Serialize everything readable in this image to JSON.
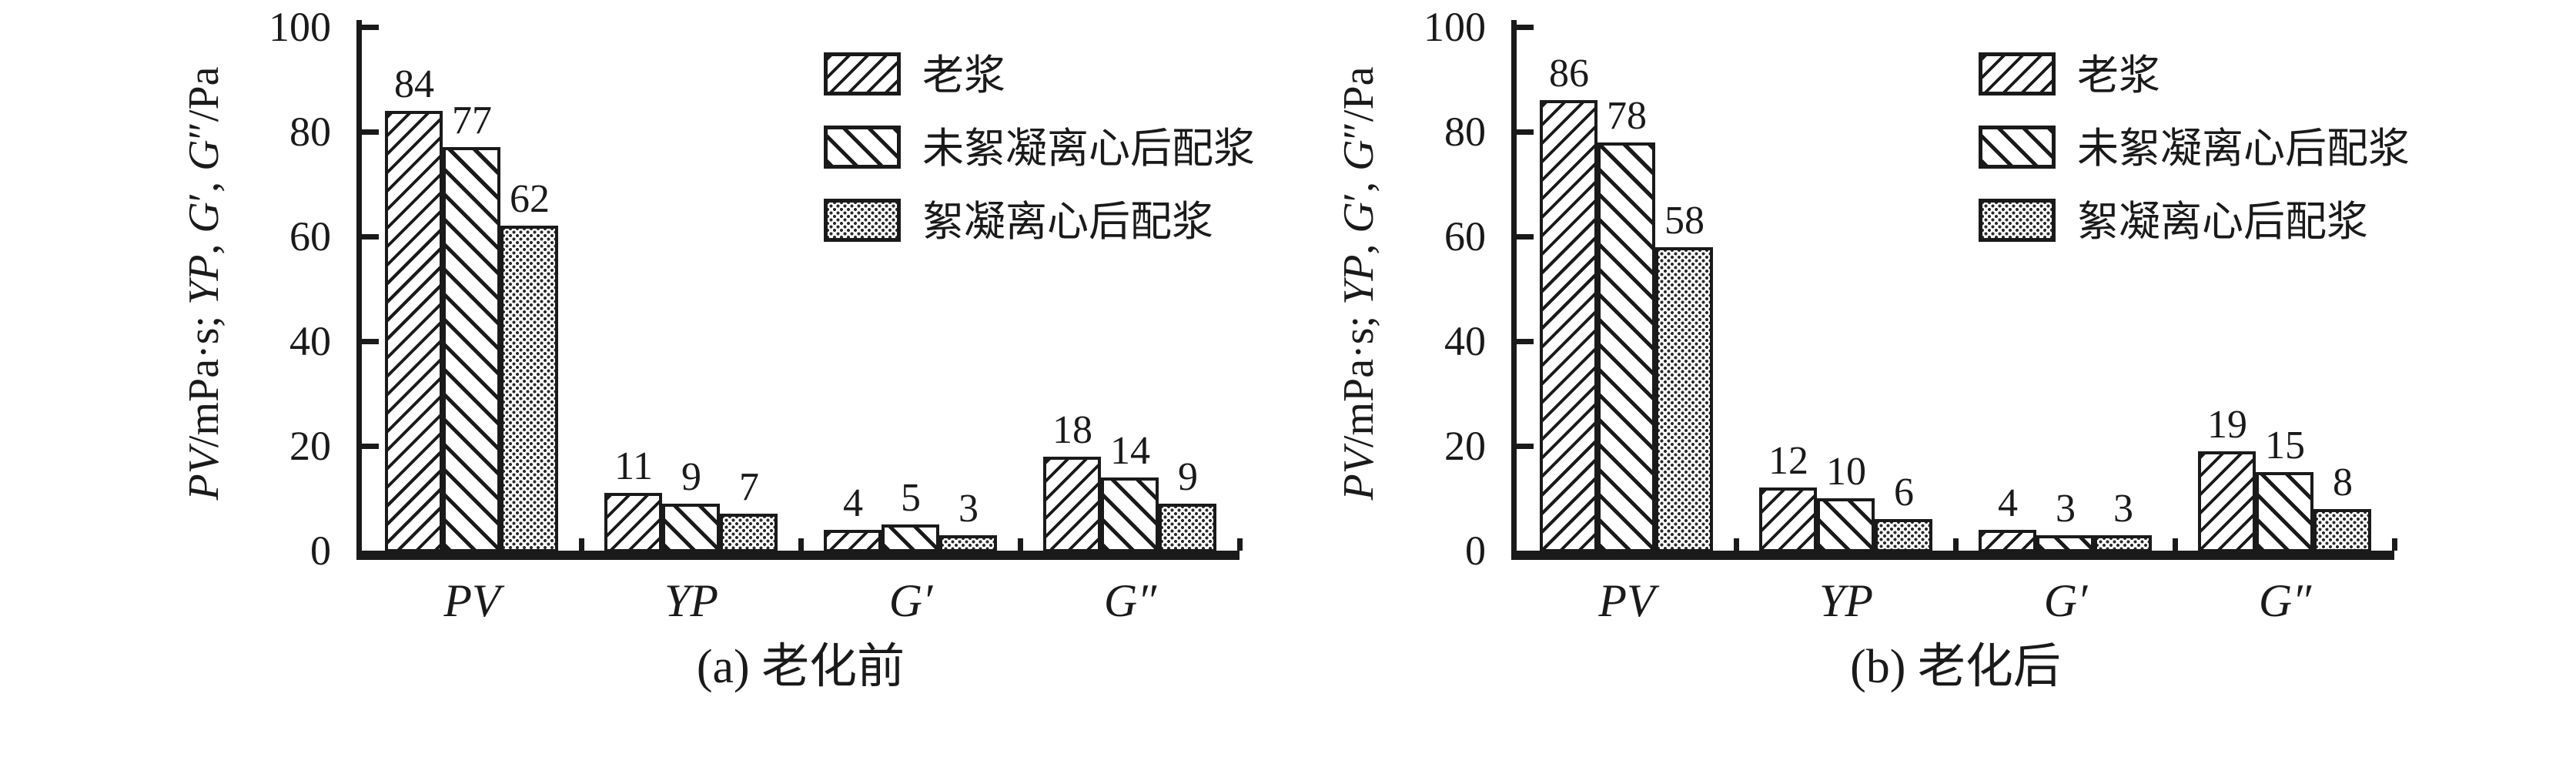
{
  "colors": {
    "ink": "#1a1a1a",
    "background": "#ffffff"
  },
  "yticks": [
    0,
    20,
    40,
    60,
    80,
    100
  ],
  "ylabel_segments": [
    {
      "text": "PV",
      "italic": true
    },
    {
      "text": "/mPa·s; ",
      "italic": false
    },
    {
      "text": "YP",
      "italic": true
    },
    {
      "text": ", ",
      "italic": false
    },
    {
      "text": "G",
      "italic": true
    },
    {
      "text": "′, ",
      "italic": false
    },
    {
      "text": "G",
      "italic": true
    },
    {
      "text": "″/Pa",
      "italic": false
    }
  ],
  "legend": {
    "items": [
      {
        "label": "老浆",
        "pattern": "hatch-forward"
      },
      {
        "label": "未絮凝离心后配浆",
        "pattern": "hatch-backward"
      },
      {
        "label": "絮凝离心后配浆",
        "pattern": "dots"
      }
    ]
  },
  "chart_data": [
    {
      "type": "bar",
      "title": "(a) 老化前",
      "ylabel": "PV/mPa·s; YP, G′, G″/Pa",
      "ylim": [
        0,
        100
      ],
      "yticks": [
        0,
        20,
        40,
        60,
        80,
        100
      ],
      "grid": false,
      "legend_position": "upper-right",
      "categories": [
        "PV",
        "YP",
        "G′",
        "G″"
      ],
      "series": [
        {
          "name": "老浆",
          "values": [
            84,
            11,
            4,
            18
          ]
        },
        {
          "name": "未絮凝离心后配浆",
          "values": [
            77,
            9,
            5,
            14
          ]
        },
        {
          "name": "絮凝离心后配浆",
          "values": [
            62,
            7,
            3,
            9
          ]
        }
      ]
    },
    {
      "type": "bar",
      "title": "(b) 老化后",
      "ylabel": "PV/mPa·s; YP, G′, G″/Pa",
      "ylim": [
        0,
        100
      ],
      "yticks": [
        0,
        20,
        40,
        60,
        80,
        100
      ],
      "grid": false,
      "legend_position": "upper-right",
      "categories": [
        "PV",
        "YP",
        "G′",
        "G″"
      ],
      "series": [
        {
          "name": "老浆",
          "values": [
            86,
            12,
            4,
            19
          ]
        },
        {
          "name": "未絮凝离心后配浆",
          "values": [
            78,
            10,
            3,
            15
          ]
        },
        {
          "name": "絮凝离心后配浆",
          "values": [
            58,
            6,
            3,
            8
          ]
        }
      ]
    }
  ]
}
